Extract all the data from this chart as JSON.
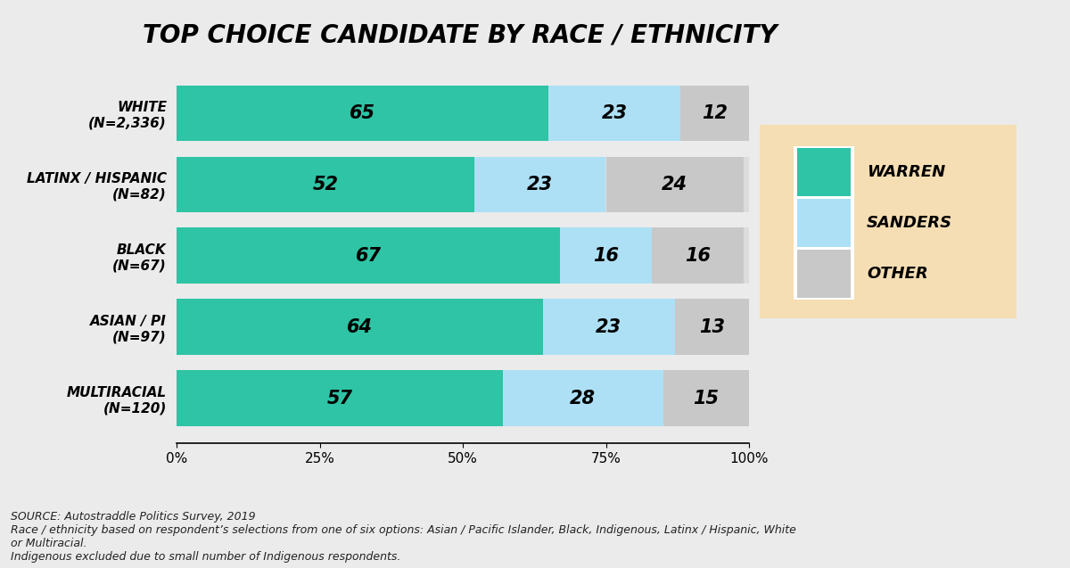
{
  "title": "TOP CHOICE CANDIDATE BY RACE / ETHNICITY",
  "categories": [
    "WHITE\n(N=2,336)",
    "LATINX / HISPANIC\n(N=82)",
    "BLACK\n(N=67)",
    "ASIAN / PI\n(N=97)",
    "MULTIRACIAL\n(N=120)"
  ],
  "warren": [
    65,
    52,
    67,
    64,
    57
  ],
  "sanders": [
    23,
    23,
    16,
    23,
    28
  ],
  "other": [
    12,
    24,
    16,
    13,
    15
  ],
  "color_warren": "#2EC4A5",
  "color_sanders": "#ADE0F5",
  "color_other": "#C8C8C8",
  "legend_labels": [
    "WARREN",
    "SANDERS",
    "OTHER"
  ],
  "legend_bg": "#F5DEB3",
  "bg_color": "#EBEBEB",
  "bar_bg": "#DCDCDC",
  "source_text": "SOURCE: Autostraddle Politics Survey, 2019\nRace / ethnicity based on respondent’s selections from one of six options: Asian / Pacific Islander, Black, Indigenous, Latinx / Hispanic, White\nor Multiracial.\nIndigenous excluded due to small number of Indigenous respondents."
}
